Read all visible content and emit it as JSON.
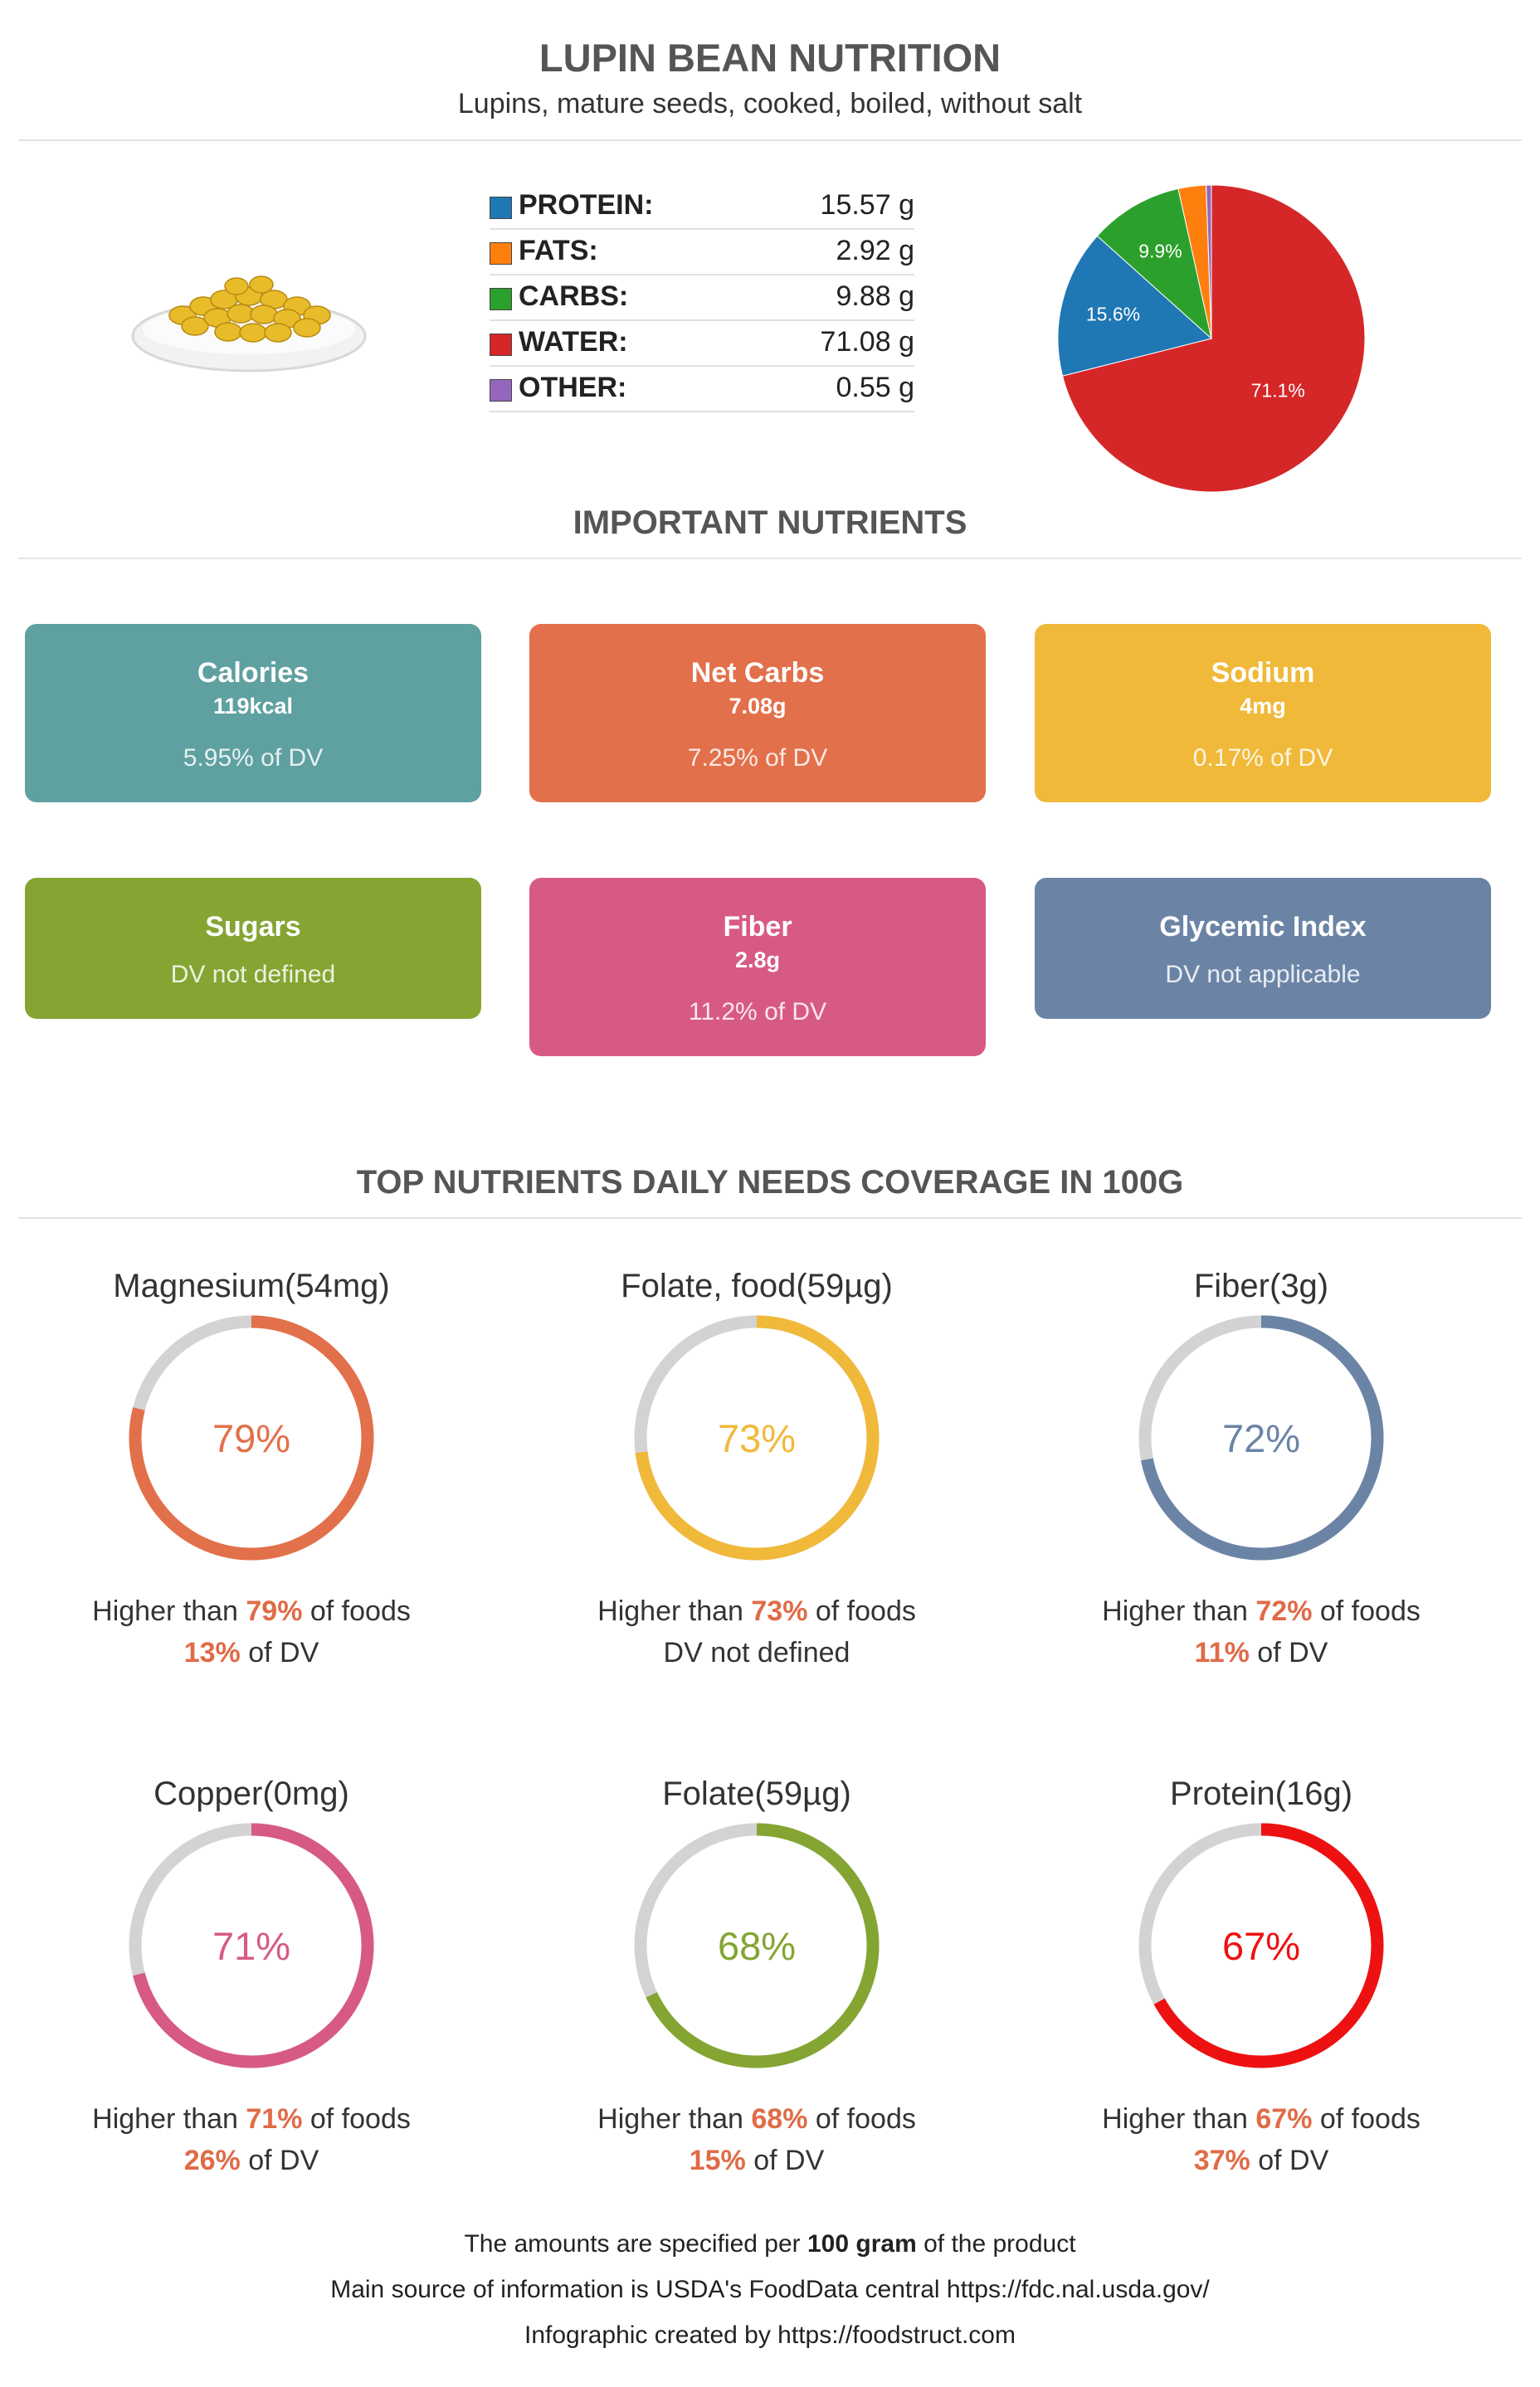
{
  "header": {
    "title": "LUPIN BEAN NUTRITION",
    "subtitle": "Lupins, mature seeds, cooked, boiled, without salt"
  },
  "macros": [
    {
      "label": "PROTEIN:",
      "value": "15.57 g",
      "color": "#1f77b4"
    },
    {
      "label": "FATS:",
      "value": "2.92 g",
      "color": "#ff7f0e"
    },
    {
      "label": "CARBS:",
      "value": "9.88 g",
      "color": "#2ca02c"
    },
    {
      "label": "WATER:",
      "value": "71.08 g",
      "color": "#d62728"
    },
    {
      "label": "OTHER:",
      "value": "0.55 g",
      "color": "#9467bd"
    }
  ],
  "chart_data": {
    "type": "pie",
    "series": [
      {
        "name": "PROTEIN",
        "value": 15.57,
        "label": "15.6%",
        "color": "#1f77b4"
      },
      {
        "name": "FATS",
        "value": 2.92,
        "label": "",
        "color": "#ff7f0e"
      },
      {
        "name": "CARBS",
        "value": 9.88,
        "label": "9.9%",
        "color": "#2ca02c"
      },
      {
        "name": "WATER",
        "value": 71.08,
        "label": "71.1%",
        "color": "#d62728"
      },
      {
        "name": "OTHER",
        "value": 0.55,
        "label": "",
        "color": "#9467bd"
      }
    ]
  },
  "important": {
    "title": "IMPORTANT NUTRIENTS",
    "cards": [
      {
        "name": "Calories",
        "amount": "119kcal",
        "dv": "5.95% of DV",
        "color": "#5fa0a0"
      },
      {
        "name": "Net Carbs",
        "amount": "7.08g",
        "dv": "7.25% of DV",
        "color": "#e2704b"
      },
      {
        "name": "Sodium",
        "amount": "4mg",
        "dv": "0.17% of DV",
        "color": "#f0b93a"
      },
      {
        "name": "Sugars",
        "amount": "",
        "dv": "DV not defined",
        "color": "#84a532"
      },
      {
        "name": "Fiber",
        "amount": "2.8g",
        "dv": "11.2% of DV",
        "color": "#d75a84"
      },
      {
        "name": "Glycemic Index",
        "amount": "",
        "dv": "DV not applicable",
        "color": "#6b84a6"
      }
    ]
  },
  "coverage": {
    "title": "TOP NUTRIENTS DAILY NEEDS COVERAGE IN 100G",
    "higher_prefix": "Higher than ",
    "higher_suffix": " of foods",
    "dv_suffix": " of DV",
    "items": [
      {
        "name": "Magnesium(54mg)",
        "percent": 79,
        "pct_label": "79%",
        "dv": "13%",
        "dv_defined": true,
        "color": "#e2704b"
      },
      {
        "name": "Folate, food(59µg)",
        "percent": 73,
        "pct_label": "73%",
        "dv": "DV not defined",
        "dv_defined": false,
        "color": "#f0b93a"
      },
      {
        "name": "Fiber(3g)",
        "percent": 72,
        "pct_label": "72%",
        "dv": "11%",
        "dv_defined": true,
        "color": "#6b84a6"
      },
      {
        "name": "Copper(0mg)",
        "percent": 71,
        "pct_label": "71%",
        "dv": "26%",
        "dv_defined": true,
        "color": "#d75a84"
      },
      {
        "name": "Folate(59µg)",
        "percent": 68,
        "pct_label": "68%",
        "dv": "15%",
        "dv_defined": true,
        "color": "#84a532"
      },
      {
        "name": "Protein(16g)",
        "percent": 67,
        "pct_label": "67%",
        "dv": "37%",
        "dv_defined": true,
        "color": "#ee1111"
      }
    ]
  },
  "footer": {
    "line1_pre": "The amounts are specified per ",
    "line1_bold": "100 gram",
    "line1_post": " of the product",
    "line2": "Main source of information is USDA's FoodData central https://fdc.nal.usda.gov/",
    "line3": "Infographic created by https://foodstruct.com"
  }
}
